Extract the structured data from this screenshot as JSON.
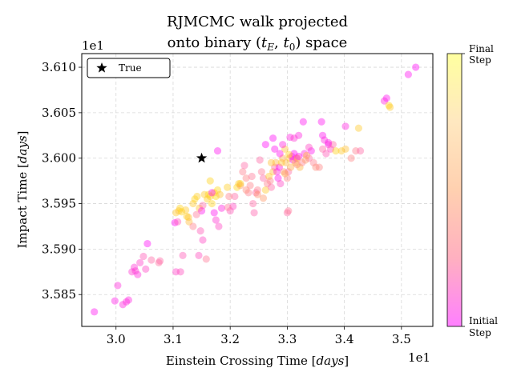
{
  "chart_data": {
    "type": "scatter",
    "title_line1": "RJMCMC walk projected",
    "title_line2_prefix": "onto binary (",
    "title_line2_suffix": ") space",
    "title_math_tE": "t",
    "title_math_tE_sub": "E",
    "title_math_t0": "t",
    "title_math_t0_sub": "0",
    "xlabel": "Einstein Crossing Time [",
    "xlabel_unit": "days",
    "ylabel": "Impact Time [",
    "ylabel_unit": "days",
    "label_close": "]",
    "x_offset_text": "1e1",
    "y_offset_text": "1e1",
    "xlim": [
      2.94,
      3.555
    ],
    "ylim": [
      3.5815,
      3.6115
    ],
    "xticks": [
      3.0,
      3.1,
      3.2,
      3.3,
      3.4,
      3.5
    ],
    "xtick_labels": [
      "3.0",
      "3.1",
      "3.2",
      "3.3",
      "3.4",
      "3.5"
    ],
    "yticks": [
      3.585,
      3.59,
      3.595,
      3.6,
      3.605,
      3.61
    ],
    "ytick_labels": [
      "3.585",
      "3.590",
      "3.595",
      "3.600",
      "3.605",
      "3.610"
    ],
    "grid": true,
    "legend": {
      "label": "True",
      "position": "top-left"
    },
    "true_point": {
      "x": 3.15,
      "y": 3.6
    },
    "colorbar": {
      "label_top_line1": "Final",
      "label_top_line2": "Step",
      "label_bottom_line1": "Initial",
      "label_bottom_line2": "Step",
      "colors": [
        "#ff80ff",
        "#ffb0c0",
        "#ffd0b0",
        "#ffe8c0",
        "#ffffa0"
      ]
    },
    "points": [
      [
        2.962,
        3.5831,
        0.05
      ],
      [
        2.998,
        3.5843,
        0.08
      ],
      [
        3.003,
        3.586,
        0.12
      ],
      [
        3.012,
        3.5839,
        0.1
      ],
      [
        3.018,
        3.5842,
        0.12
      ],
      [
        3.022,
        3.5844,
        0.1
      ],
      [
        3.028,
        3.5875,
        0.15
      ],
      [
        3.032,
        3.588,
        0.14
      ],
      [
        3.034,
        3.5876,
        0.15
      ],
      [
        3.038,
        3.5872,
        0.12
      ],
      [
        3.042,
        3.5885,
        0.18
      ],
      [
        3.052,
        3.5878,
        0.2
      ],
      [
        3.048,
        3.5892,
        0.25
      ],
      [
        3.055,
        3.5906,
        0.02
      ],
      [
        3.062,
        3.5888,
        0.3
      ],
      [
        3.075,
        3.5885,
        0.32
      ],
      [
        3.077,
        3.5887,
        0.3
      ],
      [
        3.105,
        3.5875,
        0.18
      ],
      [
        3.113,
        3.5875,
        0.22
      ],
      [
        3.117,
        3.5893,
        0.25
      ],
      [
        3.145,
        3.5893,
        0.22
      ],
      [
        3.152,
        3.591,
        0.2
      ],
      [
        3.158,
        3.5889,
        0.35
      ],
      [
        3.103,
        3.5929,
        0.02
      ],
      [
        3.105,
        3.594,
        0.85
      ],
      [
        3.11,
        3.5942,
        0.8
      ],
      [
        3.115,
        3.5941,
        0.9
      ],
      [
        3.122,
        3.5943,
        0.85
      ],
      [
        3.128,
        3.593,
        0.78
      ],
      [
        3.127,
        3.5935,
        0.8
      ],
      [
        3.135,
        3.595,
        0.85
      ],
      [
        3.138,
        3.5955,
        0.9
      ],
      [
        3.142,
        3.5958,
        0.88
      ],
      [
        3.146,
        3.5945,
        0.82
      ],
      [
        3.148,
        3.592,
        0.25
      ],
      [
        3.152,
        3.5948,
        0.3
      ],
      [
        3.155,
        3.596,
        0.85
      ],
      [
        3.16,
        3.5955,
        0.88
      ],
      [
        3.162,
        3.596,
        0.9
      ],
      [
        3.165,
        3.5958,
        0.85
      ],
      [
        3.168,
        3.595,
        0.9
      ],
      [
        3.172,
        3.5962,
        0.88
      ],
      [
        3.175,
        3.5958,
        0.95
      ],
      [
        3.178,
        3.5965,
        0.92
      ],
      [
        3.182,
        3.596,
        0.8
      ],
      [
        3.172,
        3.594,
        0.05
      ],
      [
        3.175,
        3.5932,
        0.15
      ],
      [
        3.18,
        3.5925,
        0.2
      ],
      [
        3.185,
        3.5945,
        0.1
      ],
      [
        3.195,
        3.5968,
        0.88
      ],
      [
        3.2,
        3.5942,
        0.25
      ],
      [
        3.205,
        3.5947,
        0.2
      ],
      [
        3.208,
        3.5958,
        0.3
      ],
      [
        3.212,
        3.5968,
        0.92
      ],
      [
        3.215,
        3.5972,
        0.85
      ],
      [
        3.218,
        3.597,
        0.6
      ],
      [
        3.222,
        3.5985,
        0.4
      ],
      [
        3.225,
        3.5992,
        0.3
      ],
      [
        3.228,
        3.5978,
        0.45
      ],
      [
        3.232,
        3.5962,
        0.4
      ],
      [
        3.235,
        3.597,
        0.42
      ],
      [
        3.238,
        3.598,
        0.35
      ],
      [
        3.24,
        3.595,
        0.3
      ],
      [
        3.242,
        3.594,
        0.28
      ],
      [
        3.245,
        3.5962,
        0.3
      ],
      [
        3.248,
        3.5965,
        0.4
      ],
      [
        3.252,
        3.5998,
        0.3
      ],
      [
        3.255,
        3.5985,
        0.35
      ],
      [
        3.258,
        3.5978,
        0.3
      ],
      [
        3.262,
        3.5965,
        0.85
      ],
      [
        3.265,
        3.5972,
        0.4
      ],
      [
        3.268,
        3.598,
        0.85
      ],
      [
        3.27,
        3.5975,
        0.4
      ],
      [
        3.272,
        3.5968,
        0.3
      ],
      [
        3.275,
        3.5985,
        0.8
      ],
      [
        3.278,
        3.599,
        0.3
      ],
      [
        3.28,
        3.5995,
        0.75
      ],
      [
        3.282,
        3.5985,
        0.1
      ],
      [
        3.284,
        3.5978,
        0.05
      ],
      [
        3.286,
        3.599,
        0.05
      ],
      [
        3.288,
        3.5972,
        0.2
      ],
      [
        3.29,
        3.5995,
        0.85
      ],
      [
        3.292,
        3.6,
        0.7
      ],
      [
        3.294,
        3.5985,
        0.5
      ],
      [
        3.296,
        3.601,
        0.8
      ],
      [
        3.298,
        3.5995,
        0.75
      ],
      [
        3.3,
        3.5978,
        0.45
      ],
      [
        3.302,
        3.5985,
        0.3
      ],
      [
        3.304,
        3.6,
        0.8
      ],
      [
        3.306,
        3.599,
        0.7
      ],
      [
        3.308,
        3.6002,
        0.1
      ],
      [
        3.31,
        3.5998,
        0.05
      ],
      [
        3.312,
        3.6005,
        0.02
      ],
      [
        3.314,
        3.5995,
        0.8
      ],
      [
        3.316,
        3.6,
        0.1
      ],
      [
        3.318,
        3.6,
        0.85
      ],
      [
        3.32,
        3.6002,
        0.05
      ],
      [
        3.322,
        3.599,
        0.75
      ],
      [
        3.326,
        3.5995,
        0.4
      ],
      [
        3.33,
        3.6005,
        0.1
      ],
      [
        3.334,
        3.6003,
        0.8
      ],
      [
        3.338,
        3.6,
        0.3
      ],
      [
        3.342,
        3.6008,
        0.05
      ],
      [
        3.346,
        3.5995,
        0.4
      ],
      [
        3.35,
        3.599,
        0.5
      ],
      [
        3.356,
        3.599,
        0.45
      ],
      [
        3.362,
        3.601,
        0.3
      ],
      [
        3.368,
        3.6005,
        0.25
      ],
      [
        3.372,
        3.6015,
        0.1
      ],
      [
        3.376,
        3.601,
        0.2
      ],
      [
        3.38,
        3.6015,
        0.3
      ],
      [
        3.385,
        3.6008,
        0.9
      ],
      [
        3.395,
        3.6008,
        0.85
      ],
      [
        3.402,
        3.601,
        0.8
      ],
      [
        3.412,
        3.6,
        0.45
      ],
      [
        3.42,
        3.6008,
        0.4
      ],
      [
        3.428,
        3.6008,
        0.3
      ],
      [
        3.425,
        3.6033,
        0.85
      ],
      [
        3.402,
        3.6035,
        0.1
      ],
      [
        3.36,
        3.604,
        0.05
      ],
      [
        3.328,
        3.604,
        0.05
      ],
      [
        3.305,
        3.6023,
        0.1
      ],
      [
        3.312,
        3.6022,
        0.15
      ],
      [
        3.32,
        3.6025,
        0.1
      ],
      [
        3.275,
        3.6022,
        0.02
      ],
      [
        3.278,
        3.601,
        0.05
      ],
      [
        3.262,
        3.6015,
        0.02
      ],
      [
        3.362,
        3.6025,
        0.05
      ],
      [
        3.365,
        3.602,
        0.1
      ],
      [
        3.372,
        3.6017,
        0.08
      ],
      [
        3.47,
        3.6063,
        0.1
      ],
      [
        3.474,
        3.6066,
        0.05
      ],
      [
        3.478,
        3.6058,
        0.9
      ],
      [
        3.48,
        3.6056,
        0.85
      ],
      [
        3.512,
        3.6092,
        0.05
      ],
      [
        3.525,
        3.61,
        0.02
      ],
      [
        3.178,
        3.6008,
        0.05
      ],
      [
        3.3,
        3.594,
        0.3
      ],
      [
        3.302,
        3.5942,
        0.35
      ],
      [
        3.258,
        3.5956,
        0.6
      ],
      [
        3.248,
        3.596,
        0.55
      ],
      [
        3.228,
        3.5965,
        0.5
      ],
      [
        3.218,
        3.5972,
        0.9
      ],
      [
        3.198,
        3.5958,
        0.4
      ],
      [
        3.196,
        3.5946,
        0.35
      ],
      [
        3.165,
        3.5975,
        0.9
      ],
      [
        3.168,
        3.5962,
        0.05
      ],
      [
        3.15,
        3.5942,
        0.05
      ],
      [
        3.141,
        3.5938,
        0.35
      ],
      [
        3.135,
        3.5925,
        0.4
      ],
      [
        3.124,
        3.5936,
        0.88
      ],
      [
        3.112,
        3.5945,
        0.9
      ],
      [
        3.108,
        3.593,
        0.25
      ],
      [
        3.272,
        3.5995,
        0.8
      ],
      [
        3.287,
        3.6005,
        0.05
      ],
      [
        3.292,
        3.6015,
        0.1
      ],
      [
        3.296,
        3.5983,
        0.7
      ],
      [
        3.303,
        3.6004,
        0.9
      ],
      [
        3.317,
        3.5993,
        0.5
      ],
      [
        3.332,
        3.5998,
        0.6
      ],
      [
        3.338,
        3.6012,
        0.2
      ]
    ]
  }
}
